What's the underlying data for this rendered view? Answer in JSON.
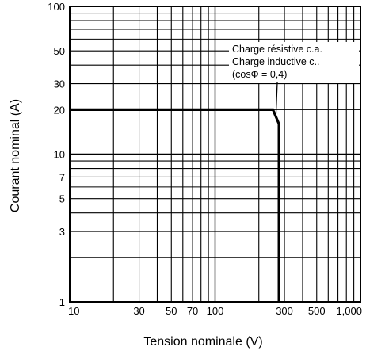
{
  "chart_data": {
    "type": "line",
    "xlabel": "Tension nominale (V)",
    "ylabel": "Courant nominal (A)",
    "xscale": "log",
    "yscale": "log",
    "xlim": [
      10,
      1000
    ],
    "ylim": [
      1,
      100
    ],
    "grid": true,
    "x_ticks": [
      {
        "value": 10,
        "label": "10"
      },
      {
        "value": 30,
        "label": "30"
      },
      {
        "value": 50,
        "label": "50"
      },
      {
        "value": 70,
        "label": "70"
      },
      {
        "value": 100,
        "label": "100"
      },
      {
        "value": 300,
        "label": "300"
      },
      {
        "value": 500,
        "label": "500"
      },
      {
        "value": 1000,
        "label": "1,000"
      }
    ],
    "y_ticks": [
      {
        "value": 1,
        "label": "1"
      },
      {
        "value": 3,
        "label": "3"
      },
      {
        "value": 5,
        "label": "5"
      },
      {
        "value": 7,
        "label": "7"
      },
      {
        "value": 10,
        "label": "10"
      },
      {
        "value": 20,
        "label": "20"
      },
      {
        "value": 30,
        "label": "30"
      },
      {
        "value": 50,
        "label": "50"
      },
      {
        "value": 100,
        "label": "100"
      }
    ],
    "series": [
      {
        "x": [
          10,
          250,
          275,
          275
        ],
        "y": [
          20,
          20,
          16,
          1
        ]
      }
    ],
    "annotation": {
      "lines": [
        "Charge résistive c.a.",
        "Charge inductive c..",
        "(cosΦ = 0,4)"
      ],
      "arrow_to": {
        "x": 262,
        "y": 18
      }
    }
  }
}
